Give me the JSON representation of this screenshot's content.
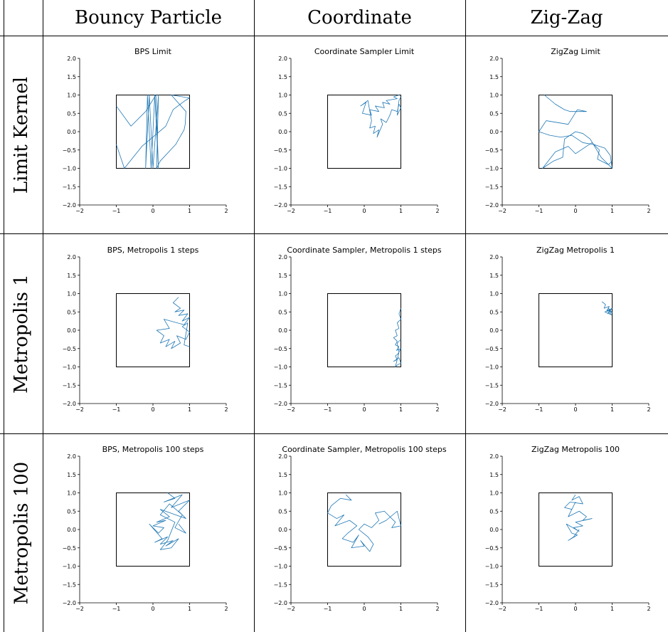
{
  "table": {
    "columns": [
      "Bouncy Particle",
      "Coordinate",
      "Zig-Zag"
    ],
    "rows": [
      "Limit Kernel",
      "Metropolis 1",
      "Metropolis 100"
    ]
  },
  "colors": {
    "trace": "#1f77b4",
    "box": "#000000"
  },
  "chart_data": [
    {
      "type": "line",
      "title": "BPS Limit",
      "xlim": [
        -2,
        2
      ],
      "ylim": [
        -2,
        2
      ],
      "xticks": [
        "−2",
        "−1",
        "0",
        "1",
        "2"
      ],
      "yticks": [
        "−2.0",
        "−1.5",
        "−1.0",
        "−0.5",
        "0.0",
        "0.5",
        "1.0",
        "1.5",
        "2.0"
      ],
      "box": [
        [
          -1,
          -1
        ],
        [
          1,
          -1
        ],
        [
          1,
          1
        ],
        [
          -1,
          1
        ]
      ],
      "series": [
        {
          "x": [
            -1.0,
            -0.78,
            -0.3,
            0.35,
            0.55,
            0.88,
            1.0,
            0.5,
            0.9,
            0.88,
            0.85,
            0.62,
            0.2,
            0.1,
            0.15,
            0.0,
            -0.1,
            -0.2,
            -0.15,
            -0.05,
            0.05,
            0.15,
            0.08,
            -0.2,
            -0.6,
            -1.0
          ],
          "y": [
            -0.35,
            -1.0,
            -0.4,
            0.15,
            0.6,
            0.85,
            0.92,
            1.0,
            0.55,
            0.2,
            0.05,
            -0.35,
            -0.8,
            -1.0,
            1.0,
            -1.0,
            1.0,
            -1.0,
            1.0,
            -1.0,
            1.0,
            -1.0,
            1.0,
            0.55,
            0.15,
            0.7
          ]
        }
      ]
    },
    {
      "type": "line",
      "title": "Coordinate Sampler Limit",
      "xlim": [
        -2,
        2
      ],
      "ylim": [
        -2,
        2
      ],
      "xticks": [
        "−2",
        "−1",
        "0",
        "1",
        "2"
      ],
      "yticks": [
        "−2.0",
        "−1.5",
        "−1.0",
        "−0.5",
        "0.0",
        "0.5",
        "1.0",
        "1.5",
        "2.0"
      ],
      "box": [
        [
          -1,
          -1
        ],
        [
          1,
          -1
        ],
        [
          1,
          1
        ],
        [
          -1,
          1
        ]
      ],
      "series": [
        {
          "x": [
            0.95,
            0.8,
            0.9,
            0.6,
            0.7,
            0.5,
            0.55,
            0.3,
            0.4,
            0.15,
            0.2,
            -0.05,
            0.05,
            -0.1,
            0.1,
            0.2,
            0.15,
            0.3,
            0.25,
            0.4,
            0.35,
            0.5,
            0.45,
            0.6,
            0.7,
            0.75,
            0.9,
            0.95,
            1.0,
            0.9,
            0.95,
            1.0
          ],
          "y": [
            1.0,
            0.95,
            0.9,
            0.85,
            0.75,
            0.8,
            0.65,
            0.7,
            0.55,
            0.6,
            0.45,
            0.5,
            0.8,
            0.7,
            0.85,
            0.3,
            0.1,
            0.15,
            -0.05,
            0.05,
            -0.15,
            0.2,
            0.35,
            0.25,
            0.45,
            0.6,
            0.55,
            0.75,
            0.65,
            0.45,
            0.85,
            0.95
          ]
        }
      ]
    },
    {
      "type": "line",
      "title": "ZigZag Limit",
      "xlim": [
        -2,
        2
      ],
      "ylim": [
        -2,
        2
      ],
      "xticks": [
        "−2",
        "−1",
        "0",
        "1",
        "2"
      ],
      "yticks": [
        "−2.0",
        "−1.5",
        "−1.0",
        "−0.5",
        "0.0",
        "0.5",
        "1.0",
        "1.5",
        "2.0"
      ],
      "box": [
        [
          -1,
          -1
        ],
        [
          1,
          -1
        ],
        [
          1,
          1
        ],
        [
          -1,
          1
        ]
      ],
      "series": [
        {
          "x": [
            -0.85,
            -0.55,
            -0.3,
            -0.15,
            0.3,
            0.05,
            -0.2,
            -0.8,
            -1.0,
            -0.7,
            -0.4,
            -0.1,
            0.2,
            0.5,
            0.8,
            0.95,
            1.0,
            0.7,
            0.4,
            0.2,
            0.0,
            -0.3,
            -0.35,
            -0.6,
            -0.9,
            -0.55,
            -0.2,
            0.0,
            0.3,
            0.45,
            0.65,
            0.6,
            0.9,
            1.0
          ],
          "y": [
            1.0,
            0.75,
            0.6,
            0.55,
            0.55,
            0.6,
            0.2,
            0.3,
            0.0,
            -0.1,
            -0.15,
            -0.1,
            -0.3,
            -0.35,
            -0.45,
            -0.65,
            -1.0,
            -0.7,
            -0.2,
            -0.05,
            0.0,
            -0.2,
            -0.7,
            -0.8,
            -1.0,
            -0.55,
            -0.4,
            -0.6,
            -0.4,
            -0.3,
            -0.5,
            -0.75,
            -0.9,
            -0.8
          ]
        }
      ]
    },
    {
      "type": "line",
      "title": "BPS, Metropolis 1 steps",
      "xlim": [
        -2,
        2
      ],
      "ylim": [
        -2,
        2
      ],
      "xticks": [
        "−2",
        "−1",
        "0",
        "1",
        "2"
      ],
      "yticks": [
        "−2.0",
        "−1.5",
        "−1.0",
        "−0.5",
        "0.0",
        "0.5",
        "1.0",
        "1.5",
        "2.0"
      ],
      "box": [
        [
          -1,
          -1
        ],
        [
          1,
          -1
        ],
        [
          1,
          1
        ],
        [
          -1,
          1
        ]
      ],
      "series": [
        {
          "x": [
            0.7,
            0.55,
            0.75,
            0.6,
            0.85,
            0.7,
            0.95,
            0.8,
            1.0,
            0.85,
            0.3,
            0.45,
            0.1,
            0.3,
            0.2,
            0.45,
            0.35,
            0.6,
            0.5,
            0.75,
            0.65,
            0.9,
            1.0,
            0.8,
            0.95,
            0.85,
            1.0
          ],
          "y": [
            0.9,
            0.75,
            0.6,
            0.5,
            0.55,
            0.4,
            0.45,
            0.25,
            0.35,
            0.15,
            0.3,
            0.05,
            0.0,
            -0.15,
            -0.35,
            -0.25,
            -0.45,
            -0.3,
            -0.5,
            -0.35,
            -0.15,
            -0.25,
            -0.05,
            0.1,
            0.2,
            -0.4,
            -0.45
          ]
        }
      ]
    },
    {
      "type": "line",
      "title": "Coordinate Sampler, Metropolis 1 steps",
      "xlim": [
        -2,
        2
      ],
      "ylim": [
        -2,
        2
      ],
      "xticks": [
        "−2",
        "−1",
        "0",
        "1",
        "2"
      ],
      "yticks": [
        "−2.0",
        "−1.5",
        "−1.0",
        "−0.5",
        "0.0",
        "0.5",
        "1.0",
        "1.5",
        "2.0"
      ],
      "box": [
        [
          -1,
          -1
        ],
        [
          1,
          -1
        ],
        [
          1,
          1
        ],
        [
          -1,
          1
        ]
      ],
      "series": [
        {
          "x": [
            1.0,
            0.95,
            1.0,
            0.9,
            0.95,
            0.85,
            0.9,
            0.8,
            0.9,
            0.85,
            0.95,
            0.88,
            1.0,
            0.92,
            0.85,
            0.9,
            0.8,
            0.95,
            1.0,
            0.9,
            0.85,
            0.95,
            0.9,
            1.0
          ],
          "y": [
            0.6,
            0.45,
            0.3,
            0.2,
            0.05,
            0.0,
            -0.15,
            -0.2,
            -0.3,
            -0.4,
            -0.45,
            -0.55,
            -0.5,
            -0.65,
            -0.7,
            -0.8,
            -0.85,
            -0.75,
            -0.9,
            -0.95,
            -1.0,
            -0.6,
            -0.35,
            -0.25
          ]
        }
      ]
    },
    {
      "type": "line",
      "title": "ZigZag Metropolis 1",
      "xlim": [
        -2,
        2
      ],
      "ylim": [
        -2,
        2
      ],
      "xticks": [
        "−2",
        "−1",
        "0",
        "1",
        "2"
      ],
      "yticks": [
        "−2.0",
        "−1.5",
        "−1.0",
        "−0.5",
        "0.0",
        "0.5",
        "1.0",
        "1.5",
        "2.0"
      ],
      "box": [
        [
          -1,
          -1
        ],
        [
          1,
          -1
        ],
        [
          1,
          1
        ],
        [
          -1,
          1
        ]
      ],
      "series": [
        {
          "x": [
            0.72,
            0.82,
            0.78,
            0.92,
            0.85,
            1.0,
            0.88,
            0.95,
            0.8,
            0.98,
            0.9,
            1.0,
            0.86,
            0.94
          ],
          "y": [
            0.78,
            0.7,
            0.6,
            0.65,
            0.52,
            0.6,
            0.45,
            0.55,
            0.5,
            0.42,
            0.6,
            0.48,
            0.56,
            0.44
          ]
        }
      ]
    },
    {
      "type": "line",
      "title": "BPS, Metropolis 100 steps",
      "xlim": [
        -2,
        2
      ],
      "ylim": [
        -2,
        2
      ],
      "xticks": [
        "−2",
        "−1",
        "0",
        "1",
        "2"
      ],
      "yticks": [
        "−2.0",
        "−1.5",
        "−1.0",
        "−0.5",
        "0.0",
        "0.5",
        "1.0",
        "1.5",
        "2.0"
      ],
      "box": [
        [
          -1,
          -1
        ],
        [
          1,
          -1
        ],
        [
          1,
          1
        ],
        [
          -1,
          1
        ]
      ],
      "series": [
        {
          "x": [
            0.4,
            0.6,
            0.3,
            0.8,
            0.5,
            1.0,
            0.7,
            0.9,
            0.2,
            0.45,
            0.1,
            0.35,
            0.0,
            0.3,
            0.15,
            -0.1,
            0.25,
            0.05,
            0.4,
            0.2,
            0.55,
            0.35,
            0.7,
            0.5,
            0.2,
            0.4,
            0.6,
            0.2,
            0.45,
            0.8,
            0.6,
            0.9,
            0.7
          ],
          "y": [
            1.0,
            0.85,
            0.75,
            0.95,
            0.6,
            0.8,
            0.5,
            0.3,
            0.55,
            0.35,
            0.2,
            0.25,
            0.1,
            0.05,
            -0.1,
            0.15,
            -0.25,
            -0.35,
            -0.2,
            -0.4,
            -0.3,
            -0.45,
            -0.25,
            -0.5,
            -0.55,
            -0.3,
            0.2,
            0.4,
            0.7,
            0.4,
            0.05,
            -0.1,
            0.15
          ]
        }
      ]
    },
    {
      "type": "line",
      "title": "Coordinate Sampler, Metropolis 100 steps",
      "xlim": [
        -2,
        2
      ],
      "ylim": [
        -2,
        2
      ],
      "xticks": [
        "−2",
        "−1",
        "0",
        "1",
        "2"
      ],
      "yticks": [
        "−2.0",
        "−1.5",
        "−1.0",
        "−0.5",
        "0.0",
        "0.5",
        "1.0",
        "1.5",
        "2.0"
      ],
      "box": [
        [
          -1,
          -1
        ],
        [
          1,
          -1
        ],
        [
          1,
          1
        ],
        [
          -1,
          1
        ]
      ],
      "series": [
        {
          "x": [
            -0.5,
            -0.35,
            -0.65,
            -0.9,
            -1.0,
            -0.75,
            -0.55,
            -0.8,
            -0.4,
            -0.2,
            -0.45,
            -0.6,
            -0.3,
            -0.15,
            -0.35,
            0.0,
            -0.1,
            0.15,
            0.25,
            0.1,
            -0.15,
            0.0,
            0.2,
            0.4,
            0.3,
            0.55,
            0.7,
            0.85,
            0.75,
            1.0,
            0.9,
            0.6,
            0.4
          ],
          "y": [
            0.95,
            0.8,
            0.85,
            0.65,
            0.45,
            0.3,
            0.4,
            0.1,
            0.25,
            0.1,
            -0.1,
            -0.25,
            -0.35,
            -0.15,
            -0.5,
            -0.45,
            -0.3,
            -0.6,
            -0.4,
            -0.2,
            0.0,
            0.15,
            0.05,
            0.25,
            0.45,
            0.5,
            0.35,
            0.2,
            0.05,
            0.1,
            0.5,
            0.25,
            0.15
          ]
        }
      ]
    },
    {
      "type": "line",
      "title": "ZigZag Metropolis 100",
      "xlim": [
        -2,
        2
      ],
      "ylim": [
        -2,
        2
      ],
      "xticks": [
        "−2",
        "−1",
        "0",
        "1",
        "2"
      ],
      "yticks": [
        "−2.0",
        "−1.5",
        "−1.0",
        "−0.5",
        "0.0",
        "0.5",
        "1.0",
        "1.5",
        "2.0"
      ],
      "box": [
        [
          -1,
          -1
        ],
        [
          1,
          -1
        ],
        [
          1,
          1
        ],
        [
          -1,
          1
        ]
      ],
      "series": [
        {
          "x": [
            0.0,
            -0.1,
            0.1,
            0.2,
            -0.15,
            -0.3,
            -0.1,
            0.0,
            -0.2,
            0.1,
            0.3,
            0.2,
            0.45,
            0.0,
            0.2,
            -0.05,
            0.1,
            -0.25,
            -0.1,
            0.05,
            -0.2,
            -0.05,
            0.1
          ],
          "y": [
            0.95,
            0.8,
            0.9,
            0.7,
            0.75,
            0.6,
            0.55,
            0.75,
            0.35,
            0.5,
            0.35,
            0.25,
            0.3,
            0.2,
            0.1,
            0.05,
            -0.05,
            0.15,
            -0.1,
            -0.15,
            -0.3,
            -0.2,
            0.0
          ]
        }
      ]
    }
  ]
}
